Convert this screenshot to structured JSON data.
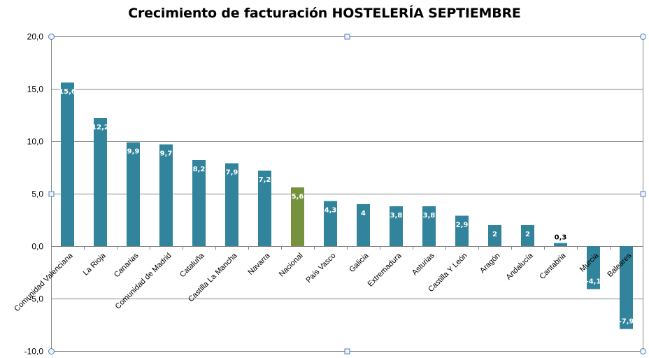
{
  "chart_data": {
    "type": "bar",
    "title": "Crecimiento de facturación HOSTELERÍA SEPTIEMBRE",
    "xlabel": "",
    "ylabel": "",
    "ylim": [
      -10,
      20
    ],
    "yticks": [
      20,
      15,
      10,
      5,
      0,
      -5,
      -10
    ],
    "ytick_labels": [
      "20,0",
      "15,0",
      "10,0",
      "5,0",
      "0,0",
      "-5,0",
      "-10,0"
    ],
    "grid": true,
    "categories": [
      "Comunidad Valenciana",
      "La Rioja",
      "Canarias",
      "Comunidad de Madrid",
      "Cataluña",
      "Castilla La Mancha",
      "Navarra",
      "Nacional",
      "País Vasco",
      "Galicia",
      "Extremadura",
      "Asturias",
      "Castilla Y León",
      "Aragón",
      "Andalucía",
      "Cantabria",
      "Murcia",
      "Baleares"
    ],
    "values": [
      15.6,
      12.2,
      9.9,
      9.7,
      8.2,
      7.9,
      7.2,
      5.6,
      4.3,
      4,
      3.8,
      3.8,
      2.9,
      2,
      2,
      0.3,
      -4.1,
      -7.9
    ],
    "data_labels": [
      "15,6",
      "12,2",
      "9,9",
      "9,7",
      "8,2",
      "7,9",
      "7,2",
      "5,6",
      "4,3",
      "4",
      "3,8",
      "3,8",
      "2,9",
      "2",
      "2",
      "0,3",
      "-4,1",
      "-7,9"
    ],
    "colors": {
      "default": "#31849b",
      "highlight": "#76923c",
      "highlight_category": "Nacional",
      "grid": "#868686",
      "axis": "#868686",
      "handle": "#4f81bd"
    }
  }
}
